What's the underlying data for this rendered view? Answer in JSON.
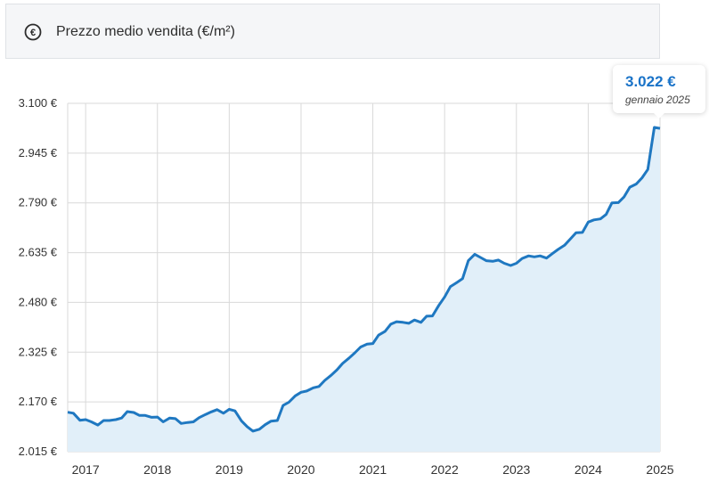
{
  "header": {
    "title": "Prezzo medio vendita (€/m²)",
    "icon": "euro-icon"
  },
  "tooltip": {
    "value": "3.022 €",
    "date": "gennaio 2025"
  },
  "colors": {
    "line": "#1f78c1",
    "area": "#e1eff9",
    "grid": "#d9d9d9",
    "tooltip_value": "#1a73c8"
  },
  "chart_data": {
    "type": "area",
    "title": "Prezzo medio vendita (€/m²)",
    "ylim": [
      2015,
      3100
    ],
    "y_ticks": [
      3100,
      2945,
      2790,
      2635,
      2480,
      2325,
      2170,
      2015
    ],
    "y_tick_labels": [
      "3.100 €",
      "2.945 €",
      "2.790 €",
      "2.635 €",
      "2.480 €",
      "2.325 €",
      "2.170 €",
      "2.015 €"
    ],
    "x_tick_labels": [
      "2017",
      "2018",
      "2019",
      "2020",
      "2021",
      "2022",
      "2023",
      "2024",
      "2025"
    ],
    "xlim": [
      2016.75,
      2025.0
    ],
    "grid": true,
    "x": [
      2016.75,
      2016.83,
      2016.92,
      2017.0,
      2017.08,
      2017.17,
      2017.25,
      2017.33,
      2017.42,
      2017.5,
      2017.58,
      2017.67,
      2017.75,
      2017.83,
      2017.92,
      2018.0,
      2018.08,
      2018.17,
      2018.25,
      2018.33,
      2018.42,
      2018.5,
      2018.58,
      2018.67,
      2018.75,
      2018.83,
      2018.92,
      2019.0,
      2019.08,
      2019.17,
      2019.25,
      2019.33,
      2019.42,
      2019.5,
      2019.58,
      2019.67,
      2019.75,
      2019.83,
      2019.92,
      2020.0,
      2020.08,
      2020.17,
      2020.25,
      2020.33,
      2020.42,
      2020.5,
      2020.58,
      2020.67,
      2020.75,
      2020.83,
      2020.92,
      2021.0,
      2021.08,
      2021.17,
      2021.25,
      2021.33,
      2021.42,
      2021.5,
      2021.58,
      2021.67,
      2021.75,
      2021.83,
      2021.92,
      2022.0,
      2022.08,
      2022.17,
      2022.25,
      2022.33,
      2022.42,
      2022.5,
      2022.58,
      2022.67,
      2022.75,
      2022.83,
      2022.92,
      2023.0,
      2023.08,
      2023.17,
      2023.25,
      2023.33,
      2023.42,
      2023.5,
      2023.58,
      2023.67,
      2023.75,
      2023.83,
      2023.92,
      2024.0,
      2024.08,
      2024.17,
      2024.25,
      2024.33,
      2024.42,
      2024.5,
      2024.58,
      2024.67,
      2024.75,
      2024.83,
      2024.92,
      2025.0
    ],
    "series": [
      {
        "values": [
          2138,
          2135,
          2113,
          2115,
          2108,
          2098,
          2112,
          2112,
          2115,
          2120,
          2140,
          2137,
          2128,
          2128,
          2122,
          2123,
          2108,
          2120,
          2118,
          2103,
          2106,
          2108,
          2121,
          2131,
          2139,
          2146,
          2135,
          2147,
          2142,
          2111,
          2093,
          2079,
          2085,
          2099,
          2110,
          2112,
          2159,
          2169,
          2189,
          2200,
          2204,
          2214,
          2218,
          2237,
          2253,
          2270,
          2290,
          2307,
          2323,
          2341,
          2350,
          2352,
          2378,
          2390,
          2412,
          2420,
          2418,
          2415,
          2425,
          2418,
          2437,
          2438,
          2471,
          2497,
          2529,
          2542,
          2554,
          2610,
          2630,
          2620,
          2610,
          2608,
          2612,
          2602,
          2595,
          2602,
          2617,
          2625,
          2622,
          2625,
          2618,
          2632,
          2645,
          2658,
          2677,
          2697,
          2698,
          2730,
          2737,
          2740,
          2754,
          2790,
          2791,
          2809,
          2839,
          2849,
          2868,
          2894,
          3025,
          3022
        ]
      }
    ]
  }
}
